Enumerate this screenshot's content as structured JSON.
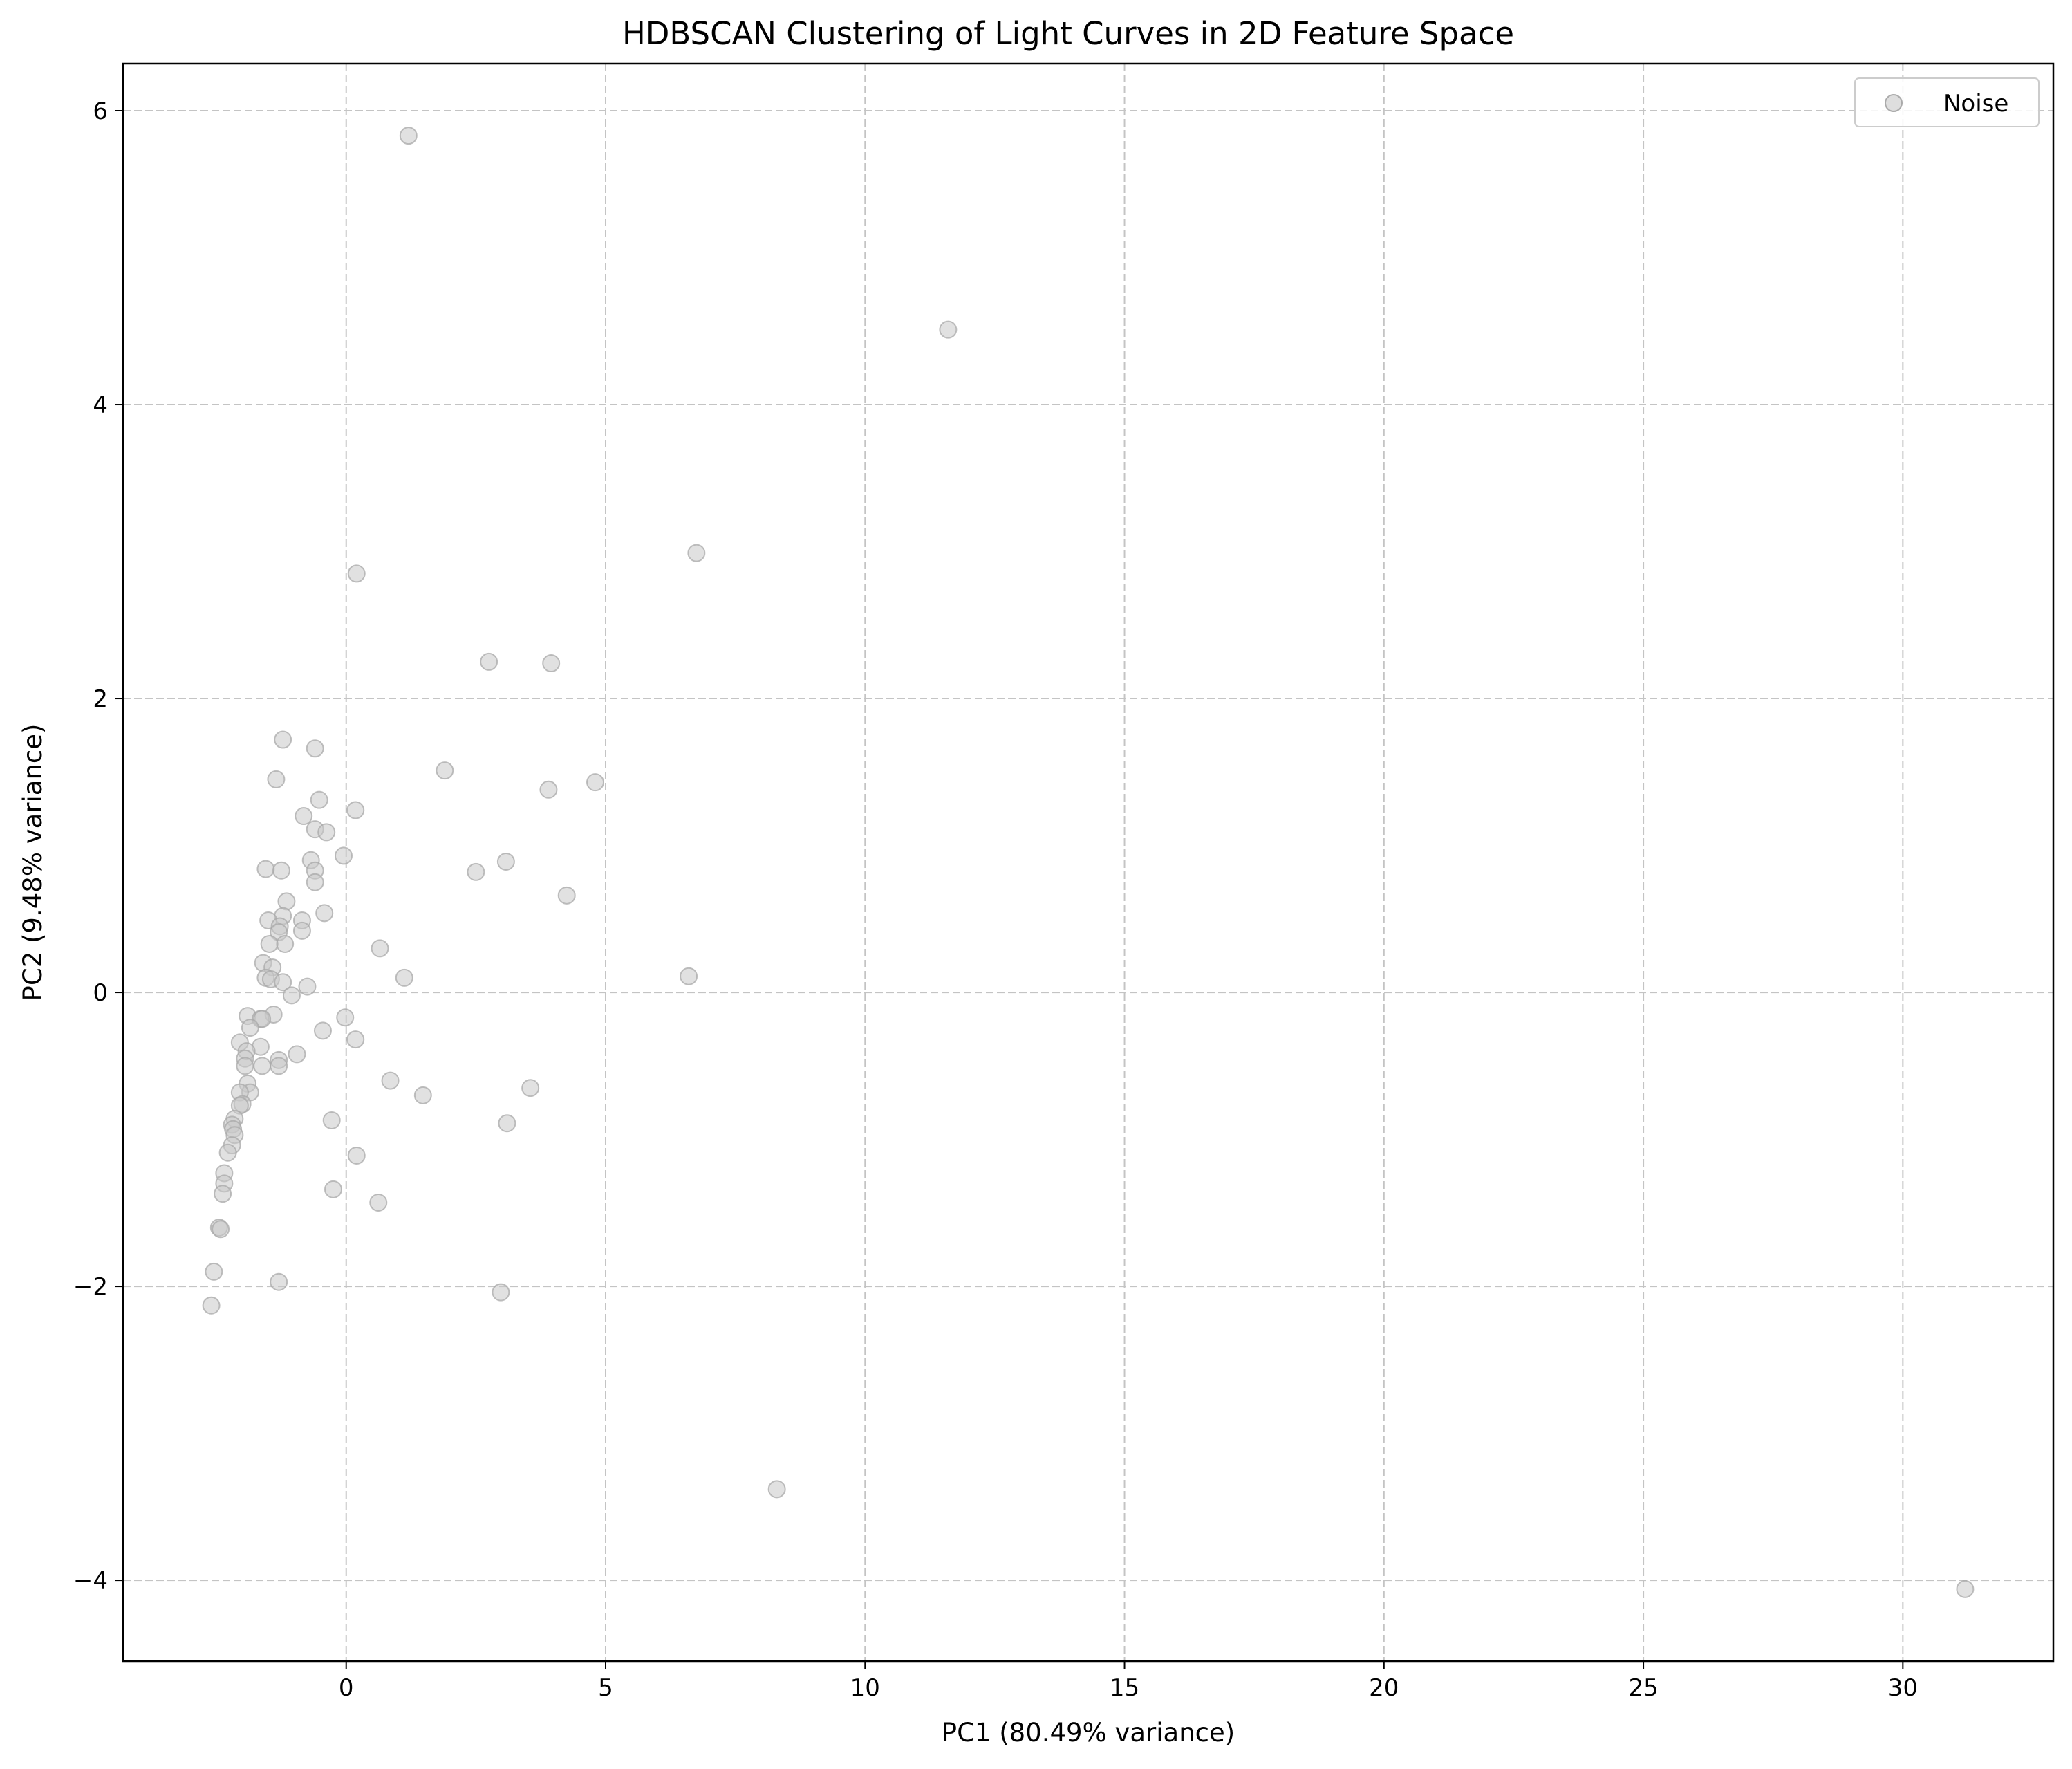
{
  "chart_data": {
    "type": "scatter",
    "title": "HDBSCAN Clustering of Light Curves in 2D Feature Space",
    "xlabel": "PC1 (80.49% variance)",
    "ylabel": "PC2 (9.48% variance)",
    "xlim": [
      -4.3,
      32.9
    ],
    "ylim": [
      -4.55,
      6.32
    ],
    "xticks": [
      0,
      5,
      10,
      15,
      20,
      25,
      30
    ],
    "yticks": [
      -4,
      -2,
      0,
      2,
      4,
      6
    ],
    "xtick_labels": [
      "0",
      "5",
      "10",
      "15",
      "20",
      "25",
      "30"
    ],
    "ytick_labels": [
      "−4",
      "−2",
      "0",
      "2",
      "4",
      "6"
    ],
    "grid": true,
    "legend_position": "top-right",
    "series": [
      {
        "name": "Noise",
        "color": "#c8c8c8",
        "points": [
          [
            1.2,
            5.83
          ],
          [
            11.6,
            4.51
          ],
          [
            6.75,
            2.99
          ],
          [
            0.2,
            2.85
          ],
          [
            2.75,
            2.25
          ],
          [
            3.95,
            2.24
          ],
          [
            -1.22,
            1.72
          ],
          [
            -0.6,
            1.66
          ],
          [
            1.9,
            1.51
          ],
          [
            -1.35,
            1.45
          ],
          [
            4.8,
            1.43
          ],
          [
            3.9,
            1.38
          ],
          [
            -0.52,
            1.31
          ],
          [
            0.18,
            1.24
          ],
          [
            -0.82,
            1.2
          ],
          [
            -0.6,
            1.11
          ],
          [
            -0.38,
            1.09
          ],
          [
            -0.05,
            0.93
          ],
          [
            -0.68,
            0.9
          ],
          [
            3.08,
            0.89
          ],
          [
            -1.55,
            0.84
          ],
          [
            -1.25,
            0.83
          ],
          [
            -0.6,
            0.83
          ],
          [
            2.5,
            0.82
          ],
          [
            -0.6,
            0.75
          ],
          [
            4.25,
            0.66
          ],
          [
            -1.15,
            0.62
          ],
          [
            -0.42,
            0.54
          ],
          [
            -1.22,
            0.52
          ],
          [
            -1.5,
            0.49
          ],
          [
            -0.85,
            0.49
          ],
          [
            -1.28,
            0.45
          ],
          [
            -0.85,
            0.42
          ],
          [
            -1.3,
            0.41
          ],
          [
            -1.18,
            0.33
          ],
          [
            -1.48,
            0.33
          ],
          [
            0.65,
            0.3
          ],
          [
            -1.6,
            0.2
          ],
          [
            -1.42,
            0.17
          ],
          [
            -1.55,
            0.1
          ],
          [
            -1.45,
            0.09
          ],
          [
            1.12,
            0.1
          ],
          [
            6.6,
            0.11
          ],
          [
            -1.22,
            0.07
          ],
          [
            -0.75,
            0.04
          ],
          [
            -1.05,
            -0.02
          ],
          [
            -1.4,
            -0.15
          ],
          [
            -0.02,
            -0.17
          ],
          [
            -1.9,
            -0.16
          ],
          [
            -1.65,
            -0.18
          ],
          [
            -1.62,
            -0.18
          ],
          [
            -1.85,
            -0.24
          ],
          [
            -0.45,
            -0.26
          ],
          [
            0.18,
            -0.32
          ],
          [
            -2.05,
            -0.34
          ],
          [
            -1.65,
            -0.37
          ],
          [
            -0.95,
            -0.42
          ],
          [
            -1.92,
            -0.4
          ],
          [
            -1.95,
            -0.45
          ],
          [
            -1.3,
            -0.46
          ],
          [
            -1.95,
            -0.5
          ],
          [
            -1.3,
            -0.5
          ],
          [
            -1.62,
            -0.5
          ],
          [
            0.85,
            -0.6
          ],
          [
            -1.9,
            -0.62
          ],
          [
            3.55,
            -0.65
          ],
          [
            -1.85,
            -0.68
          ],
          [
            -2.05,
            -0.68
          ],
          [
            1.48,
            -0.7
          ],
          [
            -2.0,
            -0.76
          ],
          [
            -2.05,
            -0.77
          ],
          [
            -0.28,
            -0.87
          ],
          [
            3.1,
            -0.89
          ],
          [
            -2.15,
            -0.86
          ],
          [
            -2.2,
            -0.9
          ],
          [
            -2.18,
            -0.93
          ],
          [
            -2.15,
            -0.97
          ],
          [
            -2.2,
            -1.04
          ],
          [
            -2.28,
            -1.09
          ],
          [
            0.2,
            -1.11
          ],
          [
            -2.35,
            -1.23
          ],
          [
            -2.35,
            -1.3
          ],
          [
            -2.38,
            -1.37
          ],
          [
            0.62,
            -1.43
          ],
          [
            -0.25,
            -1.34
          ],
          [
            -2.45,
            -1.6
          ],
          [
            -2.42,
            -1.61
          ],
          [
            -2.55,
            -1.9
          ],
          [
            -1.3,
            -1.97
          ],
          [
            2.98,
            -2.04
          ],
          [
            -2.6,
            -2.13
          ],
          [
            8.3,
            -3.38
          ],
          [
            31.2,
            -4.06
          ]
        ]
      }
    ]
  }
}
